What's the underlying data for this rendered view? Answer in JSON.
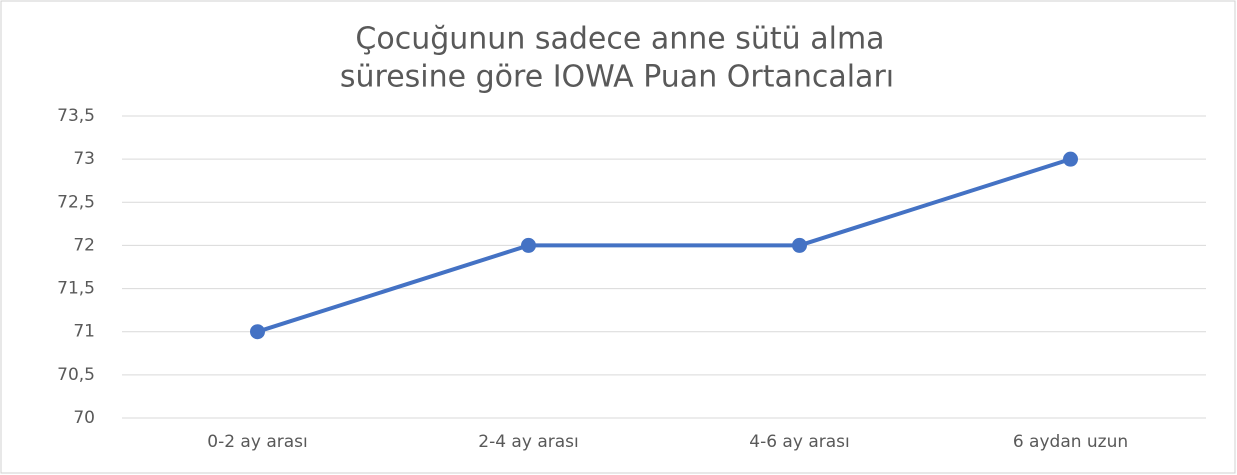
{
  "chart_data": {
    "type": "line",
    "title": [
      "Çocuğunun sadece anne sütü alma",
      "süresine göre IOWA Puan Ortancaları"
    ],
    "categories": [
      "0-2 ay arası",
      "2-4 ay arası",
      "4-6 ay arası",
      "6 aydan uzun"
    ],
    "values": [
      71,
      72,
      72,
      73
    ],
    "color": "#4472c4",
    "ylim": [
      70,
      73.5
    ],
    "yticks": [
      70,
      {
        "value": 70.5,
        "label": "70,5"
      },
      71,
      {
        "value": 71.5,
        "label": "71,5"
      },
      72,
      {
        "value": 72.5,
        "label": "72,5"
      },
      73,
      {
        "value": 73.5,
        "label": "73,5"
      }
    ],
    "grid": true
  }
}
